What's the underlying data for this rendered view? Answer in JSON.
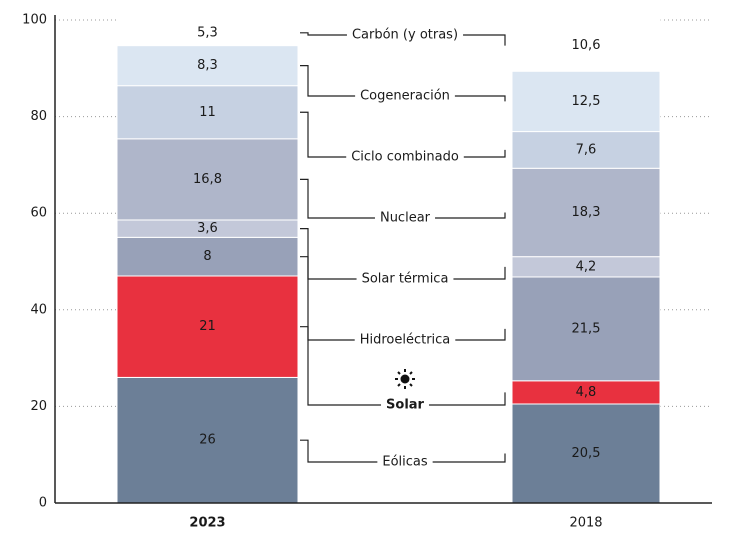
{
  "chart_data": {
    "type": "stacked_bar",
    "categories": [
      "2023",
      "2018"
    ],
    "ylim": [
      0,
      100
    ],
    "yticks": [
      0,
      20,
      40,
      60,
      80,
      100
    ],
    "grid": true,
    "series": [
      {
        "name": "Eólicas",
        "color": "#6c7f97",
        "values": [
          26,
          20.5
        ],
        "value_labels": [
          "26",
          "20,5"
        ]
      },
      {
        "name": "Solar",
        "color": "#e8313f",
        "values": [
          21,
          4.8
        ],
        "value_labels": [
          "21",
          "4,8"
        ]
      },
      {
        "name": "Hidroeléctrica",
        "color": "#98a1b8",
        "values": [
          8,
          21.5
        ],
        "value_labels": [
          "8",
          "21,5"
        ]
      },
      {
        "name": "Solar térmica",
        "color": "#c3c8d9",
        "values": [
          3.6,
          4.2
        ],
        "value_labels": [
          "3,6",
          "4,2"
        ]
      },
      {
        "name": "Nuclear",
        "color": "#afb6ca",
        "values": [
          16.8,
          18.3
        ],
        "value_labels": [
          "16,8",
          "18,3"
        ]
      },
      {
        "name": "Ciclo combinado",
        "color": "#c6d1e2",
        "values": [
          11,
          7.6
        ],
        "value_labels": [
          "11",
          "7,6"
        ]
      },
      {
        "name": "Cogeneración",
        "color": "#dbe6f2",
        "values": [
          8.3,
          12.5
        ],
        "value_labels": [
          "8,3",
          "12,5"
        ]
      },
      {
        "name": "Carbón (y otras)",
        "color": "#ffffff",
        "values": [
          5.3,
          10.6
        ],
        "value_labels": [
          "5,3",
          "10,6"
        ]
      }
    ]
  }
}
